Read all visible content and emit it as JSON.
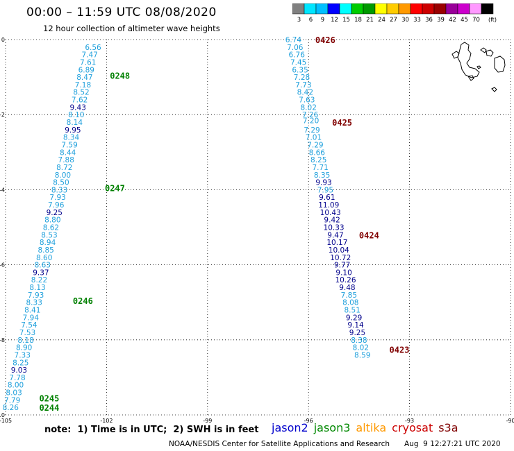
{
  "header": {
    "title": "00:00 – 11:59 UTC 08/08/2020",
    "subtitle": "12 hour collection of altimeter wave heights"
  },
  "color_scale": {
    "bins": [
      {
        "label": "3",
        "color": "#808080"
      },
      {
        "label": "6",
        "color": "#00e5ff"
      },
      {
        "label": "9",
        "color": "#00bfff"
      },
      {
        "label": "12",
        "color": "#0000ff"
      },
      {
        "label": "15",
        "color": "#00ffff"
      },
      {
        "label": "18",
        "color": "#00cc00"
      },
      {
        "label": "21",
        "color": "#009900"
      },
      {
        "label": "24",
        "color": "#ffff00"
      },
      {
        "label": "27",
        "color": "#ffcc00"
      },
      {
        "label": "30",
        "color": "#ff9900"
      },
      {
        "label": "33",
        "color": "#ff0000"
      },
      {
        "label": "36",
        "color": "#cc0000"
      },
      {
        "label": "39",
        "color": "#990000"
      },
      {
        "label": "42",
        "color": "#990099"
      },
      {
        "label": "45",
        "color": "#cc00cc"
      },
      {
        "label": "70",
        "color": "#ff99ff"
      },
      {
        "label": "",
        "color": "#000000"
      }
    ],
    "unit_label": "(ft)"
  },
  "map": {
    "lon_ticks": [
      "-105",
      "-102",
      "-99",
      "-96",
      "-93",
      "-90"
    ],
    "lat_ticks": [
      "0",
      "-2",
      "-4",
      "-6",
      "-8",
      "-10"
    ],
    "lon_range": [
      -105,
      -90
    ],
    "lat_range": [
      -10,
      0
    ],
    "colors": {
      "cyan": "#1fa0dc",
      "navy": "#00008b",
      "green": "#008000",
      "maroon": "#800000"
    }
  },
  "tracks": [
    {
      "satellite": "jason3",
      "points": [
        {
          "lon": -102.4,
          "lat": -0.2,
          "v": "6.56",
          "c": "cyan"
        },
        {
          "lon": -102.5,
          "lat": -0.4,
          "v": "7.47",
          "c": "cyan"
        },
        {
          "lon": -102.55,
          "lat": -0.6,
          "v": "7.61",
          "c": "cyan"
        },
        {
          "lon": -102.6,
          "lat": -0.8,
          "v": "6.89",
          "c": "cyan"
        },
        {
          "lon": -102.65,
          "lat": -1.0,
          "v": "8.47",
          "c": "cyan"
        },
        {
          "lon": -102.7,
          "lat": -1.2,
          "v": "7.18",
          "c": "cyan"
        },
        {
          "lon": -102.75,
          "lat": -1.4,
          "v": "8.52",
          "c": "cyan"
        },
        {
          "lon": -102.8,
          "lat": -1.6,
          "v": "7.62",
          "c": "cyan"
        },
        {
          "lon": -102.85,
          "lat": -1.8,
          "v": "9.43",
          "c": "navy"
        },
        {
          "lon": -102.9,
          "lat": -2.0,
          "v": "8.10",
          "c": "cyan"
        },
        {
          "lon": -102.95,
          "lat": -2.2,
          "v": "8.14",
          "c": "cyan"
        },
        {
          "lon": -103.0,
          "lat": -2.4,
          "v": "9.95",
          "c": "navy"
        },
        {
          "lon": -103.05,
          "lat": -2.6,
          "v": "8.34",
          "c": "cyan"
        },
        {
          "lon": -103.1,
          "lat": -2.8,
          "v": "7.59",
          "c": "cyan"
        },
        {
          "lon": -103.15,
          "lat": -3.0,
          "v": "8.44",
          "c": "cyan"
        },
        {
          "lon": -103.2,
          "lat": -3.2,
          "v": "7.88",
          "c": "cyan"
        },
        {
          "lon": -103.25,
          "lat": -3.4,
          "v": "8.72",
          "c": "cyan"
        },
        {
          "lon": -103.3,
          "lat": -3.6,
          "v": "8.00",
          "c": "cyan"
        },
        {
          "lon": -103.35,
          "lat": -3.8,
          "v": "8.50",
          "c": "cyan"
        },
        {
          "lon": -103.4,
          "lat": -4.0,
          "v": "8.33",
          "c": "cyan"
        },
        {
          "lon": -103.45,
          "lat": -4.2,
          "v": "7.93",
          "c": "cyan"
        },
        {
          "lon": -103.5,
          "lat": -4.4,
          "v": "7.96",
          "c": "cyan"
        },
        {
          "lon": -103.55,
          "lat": -4.6,
          "v": "9.25",
          "c": "navy"
        },
        {
          "lon": -103.6,
          "lat": -4.8,
          "v": "8.80",
          "c": "cyan"
        },
        {
          "lon": -103.65,
          "lat": -5.0,
          "v": "8.62",
          "c": "cyan"
        },
        {
          "lon": -103.7,
          "lat": -5.2,
          "v": "8.53",
          "c": "cyan"
        },
        {
          "lon": -103.75,
          "lat": -5.4,
          "v": "8.94",
          "c": "cyan"
        },
        {
          "lon": -103.8,
          "lat": -5.6,
          "v": "8.85",
          "c": "cyan"
        },
        {
          "lon": -103.85,
          "lat": -5.8,
          "v": "8.60",
          "c": "cyan"
        },
        {
          "lon": -103.9,
          "lat": -6.0,
          "v": "8.63",
          "c": "cyan"
        },
        {
          "lon": -103.95,
          "lat": -6.2,
          "v": "9.37",
          "c": "navy"
        },
        {
          "lon": -104.0,
          "lat": -6.4,
          "v": "8.22",
          "c": "cyan"
        },
        {
          "lon": -104.05,
          "lat": -6.6,
          "v": "8.13",
          "c": "cyan"
        },
        {
          "lon": -104.1,
          "lat": -6.8,
          "v": "7.93",
          "c": "cyan"
        },
        {
          "lon": -104.15,
          "lat": -7.0,
          "v": "8.33",
          "c": "cyan"
        },
        {
          "lon": -104.2,
          "lat": -7.2,
          "v": "8.41",
          "c": "cyan"
        },
        {
          "lon": -104.25,
          "lat": -7.4,
          "v": "7.94",
          "c": "cyan"
        },
        {
          "lon": -104.3,
          "lat": -7.6,
          "v": "7.54",
          "c": "cyan"
        },
        {
          "lon": -104.35,
          "lat": -7.8,
          "v": "7.53",
          "c": "cyan"
        },
        {
          "lon": -104.4,
          "lat": -8.0,
          "v": "8.18",
          "c": "cyan"
        },
        {
          "lon": -104.45,
          "lat": -8.2,
          "v": "8.90",
          "c": "cyan"
        },
        {
          "lon": -104.5,
          "lat": -8.4,
          "v": "7.33",
          "c": "cyan"
        },
        {
          "lon": -104.55,
          "lat": -8.6,
          "v": "8.25",
          "c": "cyan"
        },
        {
          "lon": -104.6,
          "lat": -8.8,
          "v": "9.03",
          "c": "navy"
        },
        {
          "lon": -104.65,
          "lat": -9.0,
          "v": "7.78",
          "c": "cyan"
        },
        {
          "lon": -104.7,
          "lat": -9.2,
          "v": "8.00",
          "c": "cyan"
        },
        {
          "lon": -104.75,
          "lat": -9.4,
          "v": "8.03",
          "c": "cyan"
        },
        {
          "lon": -104.8,
          "lat": -9.6,
          "v": "7.79",
          "c": "cyan"
        },
        {
          "lon": -104.85,
          "lat": -9.8,
          "v": "8.26",
          "c": "cyan"
        }
      ],
      "times": [
        {
          "lon": -101.9,
          "lat": -0.95,
          "t": "0248"
        },
        {
          "lon": -102.05,
          "lat": -3.95,
          "t": "0247"
        },
        {
          "lon": -103.0,
          "lat": -6.95,
          "t": "0246"
        },
        {
          "lon": -104.0,
          "lat": -9.55,
          "t": "0245"
        },
        {
          "lon": -104.0,
          "lat": -9.8,
          "t": "0244"
        }
      ]
    },
    {
      "satellite": "s3a",
      "points": [
        {
          "lon": -96.45,
          "lat": 0.0,
          "v": "6.74",
          "c": "cyan"
        },
        {
          "lon": -96.4,
          "lat": -0.2,
          "v": "7.06",
          "c": "cyan"
        },
        {
          "lon": -96.35,
          "lat": -0.4,
          "v": "6.76",
          "c": "cyan"
        },
        {
          "lon": -96.3,
          "lat": -0.6,
          "v": "7.45",
          "c": "cyan"
        },
        {
          "lon": -96.25,
          "lat": -0.8,
          "v": "6.35",
          "c": "cyan"
        },
        {
          "lon": -96.2,
          "lat": -1.0,
          "v": "7.28",
          "c": "cyan"
        },
        {
          "lon": -96.15,
          "lat": -1.2,
          "v": "7.73",
          "c": "cyan"
        },
        {
          "lon": -96.1,
          "lat": -1.4,
          "v": "8.42",
          "c": "cyan"
        },
        {
          "lon": -96.05,
          "lat": -1.6,
          "v": "7.63",
          "c": "cyan"
        },
        {
          "lon": -96.0,
          "lat": -1.8,
          "v": "8.02",
          "c": "cyan"
        },
        {
          "lon": -95.95,
          "lat": -2.0,
          "v": "7.26",
          "c": "cyan"
        },
        {
          "lon": -95.93,
          "lat": -2.15,
          "v": "7.20",
          "c": "cyan"
        },
        {
          "lon": -95.9,
          "lat": -2.4,
          "v": "7.29",
          "c": "cyan"
        },
        {
          "lon": -95.85,
          "lat": -2.6,
          "v": "7.01",
          "c": "cyan"
        },
        {
          "lon": -95.8,
          "lat": -2.8,
          "v": "7.29",
          "c": "cyan"
        },
        {
          "lon": -95.75,
          "lat": -3.0,
          "v": "8.66",
          "c": "cyan"
        },
        {
          "lon": -95.7,
          "lat": -3.2,
          "v": "8.25",
          "c": "cyan"
        },
        {
          "lon": -95.65,
          "lat": -3.4,
          "v": "7.71",
          "c": "cyan"
        },
        {
          "lon": -95.6,
          "lat": -3.6,
          "v": "8.35",
          "c": "cyan"
        },
        {
          "lon": -95.55,
          "lat": -3.8,
          "v": "9.93",
          "c": "navy"
        },
        {
          "lon": -95.5,
          "lat": -4.0,
          "v": "7.95",
          "c": "cyan"
        },
        {
          "lon": -95.45,
          "lat": -4.2,
          "v": "9.61",
          "c": "navy"
        },
        {
          "lon": -95.4,
          "lat": -4.4,
          "v": "11.09",
          "c": "navy"
        },
        {
          "lon": -95.35,
          "lat": -4.6,
          "v": "10.43",
          "c": "navy"
        },
        {
          "lon": -95.3,
          "lat": -4.8,
          "v": "9.42",
          "c": "navy"
        },
        {
          "lon": -95.25,
          "lat": -5.0,
          "v": "10.33",
          "c": "navy"
        },
        {
          "lon": -95.2,
          "lat": -5.2,
          "v": "9.47",
          "c": "navy"
        },
        {
          "lon": -95.15,
          "lat": -5.4,
          "v": "10.17",
          "c": "navy"
        },
        {
          "lon": -95.1,
          "lat": -5.6,
          "v": "10.04",
          "c": "navy"
        },
        {
          "lon": -95.05,
          "lat": -5.8,
          "v": "10.72",
          "c": "navy"
        },
        {
          "lon": -95.0,
          "lat": -6.0,
          "v": "9.77",
          "c": "navy"
        },
        {
          "lon": -94.95,
          "lat": -6.2,
          "v": "9.10",
          "c": "navy"
        },
        {
          "lon": -94.9,
          "lat": -6.4,
          "v": "10.26",
          "c": "navy"
        },
        {
          "lon": -94.85,
          "lat": -6.6,
          "v": "9.48",
          "c": "navy"
        },
        {
          "lon": -94.8,
          "lat": -6.8,
          "v": "7.85",
          "c": "cyan"
        },
        {
          "lon": -94.75,
          "lat": -7.0,
          "v": "8.08",
          "c": "cyan"
        },
        {
          "lon": -94.7,
          "lat": -7.2,
          "v": "8.51",
          "c": "cyan"
        },
        {
          "lon": -94.65,
          "lat": -7.4,
          "v": "9.29",
          "c": "navy"
        },
        {
          "lon": -94.6,
          "lat": -7.6,
          "v": "9.14",
          "c": "navy"
        },
        {
          "lon": -94.55,
          "lat": -7.8,
          "v": "9.25",
          "c": "navy"
        },
        {
          "lon": -94.5,
          "lat": -8.0,
          "v": "8.38",
          "c": "cyan"
        },
        {
          "lon": -94.45,
          "lat": -8.2,
          "v": "8.02",
          "c": "cyan"
        },
        {
          "lon": -94.4,
          "lat": -8.4,
          "v": "8.59",
          "c": "cyan"
        }
      ],
      "times": [
        {
          "lon": -95.8,
          "lat": 0.0,
          "t": "0426"
        },
        {
          "lon": -95.3,
          "lat": -2.2,
          "t": "0425"
        },
        {
          "lon": -94.5,
          "lat": -5.2,
          "t": "0424"
        },
        {
          "lon": -93.6,
          "lat": -8.25,
          "t": "0423"
        }
      ]
    }
  ],
  "satellite_legend": [
    {
      "name": "jason2",
      "color": "#0000cc"
    },
    {
      "name": "jason3",
      "color": "#008800"
    },
    {
      "name": "altika",
      "color": "#ff9900"
    },
    {
      "name": "cryosat",
      "color": "#cc0000"
    },
    {
      "name": "s3a",
      "color": "#800000"
    }
  ],
  "footer": {
    "note": "note:  1) Time is in UTC;  2) SWH is in feet",
    "credit": "NOAA/NESDIS Center for Satellite Applications and Research",
    "generated": "Aug  9 12:27:21 UTC 2020"
  }
}
